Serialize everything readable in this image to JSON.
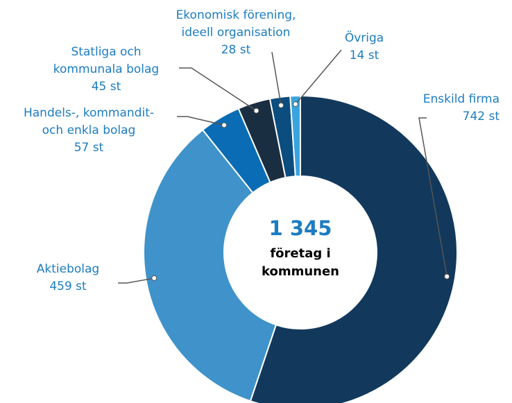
{
  "chart_data": {
    "type": "donut",
    "center_value": "1 345",
    "center_text": [
      "företag i",
      "kommunen"
    ],
    "categories": [
      [
        "Enskild firma"
      ],
      [
        "Aktiebolag"
      ],
      [
        "Handels-, kommandit-",
        "och enkla bolag"
      ],
      [
        "Statliga och",
        "kommunala bolag"
      ],
      [
        "Ekonomisk förening,",
        "ideell organisation"
      ],
      [
        "Övriga"
      ]
    ],
    "values": [
      742,
      459,
      57,
      45,
      28,
      14
    ],
    "value_labels": [
      "742 st",
      "459 st",
      "57 st",
      "45 st",
      "28 st",
      "14 st"
    ],
    "colors": [
      "#12395c",
      "#3f93ca",
      "#0a6cb4",
      "#1a2e42",
      "#0b4d7e",
      "#3aa4de"
    ]
  }
}
